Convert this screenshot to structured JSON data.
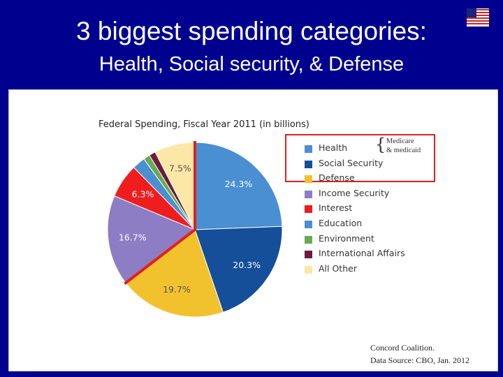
{
  "slide": {
    "title_line1": "3 biggest spending categories:",
    "title_line2": "Health, Social security, & Defense"
  },
  "flag_icon": "us-flag-icon",
  "annotation": {
    "note_line1": "Medicare",
    "note_line2": "& medicaid",
    "box_color": "#e02020"
  },
  "source": {
    "line1": "Concord Coalition.",
    "line2": "Data Source: CBO, Jan. 2012"
  },
  "chart_data": {
    "type": "pie",
    "title": "Federal Spending, Fiscal Year 2011 (in billions)",
    "legend_position": "right",
    "slices": [
      {
        "name": "Health",
        "value": 24.3,
        "label": "24.3%",
        "color": "#4a8fd1"
      },
      {
        "name": "Social Security",
        "value": 20.3,
        "label": "20.3%",
        "color": "#154f99"
      },
      {
        "name": "Defense",
        "value": 19.7,
        "label": "19.7%",
        "color": "#f2c12e"
      },
      {
        "name": "Income Security",
        "value": 16.7,
        "label": "16.7%",
        "color": "#8d7dc4"
      },
      {
        "name": "Interest",
        "value": 6.3,
        "label": "6.3%",
        "color": "#ef1d1d"
      },
      {
        "name": "Education",
        "value": 2.4,
        "label": "",
        "color": "#4a8fd1"
      },
      {
        "name": "Environment",
        "value": 1.2,
        "label": "",
        "color": "#6aaa50"
      },
      {
        "name": "International Affairs",
        "value": 1.2,
        "label": "",
        "color": "#6e1b3e"
      },
      {
        "name": "All Other",
        "value": 7.5,
        "label": "7.5%",
        "color": "#fde7a6"
      }
    ]
  }
}
